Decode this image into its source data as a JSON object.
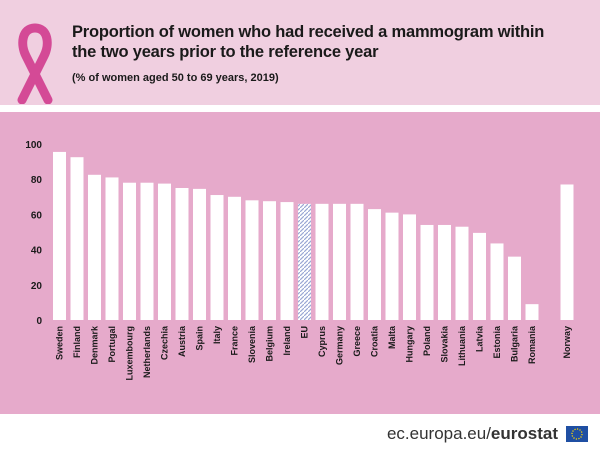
{
  "header": {
    "title": "Proportion of women who had received a mammogram within the two years prior to the reference year",
    "subtitle": "(% of women aged 50 to 69 years, 2019)"
  },
  "footer": {
    "source_plain": "ec.europa.eu/",
    "source_bold": "eurostat"
  },
  "colors": {
    "header_bg": "#f0cfe0",
    "plot_bg": "#e6aacb",
    "bar": "#ffffff",
    "eu_bar_hatch": "#9aa7d4",
    "ribbon": "#d44a96"
  },
  "chart_data": {
    "type": "bar",
    "title": "Proportion of women who had received a mammogram within the two years prior to the reference year",
    "subtitle": "(% of women aged 50 to 69 years, 2019)",
    "categories": [
      "Sweden",
      "Finland",
      "Denmark",
      "Portugal",
      "Luxembourg",
      "Netherlands",
      "Czechia",
      "Austria",
      "Spain",
      "Italy",
      "France",
      "Slovenia",
      "Belgium",
      "Ireland",
      "EU",
      "Cyprus",
      "Germany",
      "Greece",
      "Croatia",
      "Malta",
      "Hungary",
      "Poland",
      "Slovakia",
      "Lithuania",
      "Latvia",
      "Estonia",
      "Bulgaria",
      "Romania",
      "Norway"
    ],
    "values": [
      95.5,
      92.5,
      82.5,
      81,
      78,
      78,
      77.5,
      75,
      74.5,
      71,
      70,
      68,
      67.5,
      67,
      66,
      66,
      66,
      66,
      63,
      61,
      60,
      54,
      54,
      53,
      49.5,
      43.5,
      36,
      9,
      77
    ],
    "ylim": [
      0,
      100
    ],
    "yticks": [
      0,
      20,
      40,
      60,
      80,
      100
    ],
    "highlight": "EU",
    "gap_before": "Norway",
    "grid": false,
    "legend": "none"
  }
}
